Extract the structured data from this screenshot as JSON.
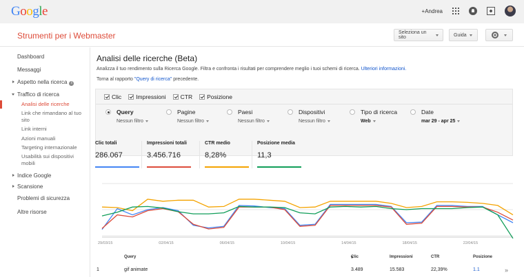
{
  "header": {
    "logo_letters": [
      {
        "ch": "G",
        "color": "#4285f4"
      },
      {
        "ch": "o",
        "color": "#ea4335"
      },
      {
        "ch": "o",
        "color": "#fbbc05"
      },
      {
        "ch": "g",
        "color": "#4285f4"
      },
      {
        "ch": "l",
        "color": "#34a853"
      },
      {
        "ch": "e",
        "color": "#ea4335"
      }
    ],
    "user_label": "+Andrea"
  },
  "product": {
    "name": "Strumenti per i Webmaster",
    "site_selector": "Seleziona un sito",
    "guide": "Guida"
  },
  "sidebar": {
    "items": [
      {
        "label": "Dashboard"
      },
      {
        "label": "Messaggi"
      },
      {
        "label": "Aspetto nella ricerca"
      },
      {
        "label": "Traffico di ricerca"
      },
      {
        "label": "Analisi delle ricerche"
      },
      {
        "label": "Link che rimandano al tuo sito"
      },
      {
        "label": "Link interni"
      },
      {
        "label": "Azioni manuali"
      },
      {
        "label": "Targeting internazionale"
      },
      {
        "label": "Usabilità sui dispositivi mobili"
      },
      {
        "label": "Indice Google"
      },
      {
        "label": "Scansione"
      },
      {
        "label": "Problemi di sicurezza"
      },
      {
        "label": "Altre risorse"
      }
    ]
  },
  "page": {
    "title": "Analisi delle ricerche (Beta)",
    "desc": "Analizza il tuo rendimento sulla Ricerca Google. Filtra e confronta i risultati per comprendere meglio i tuoi schemi di ricerca.",
    "desc_link": "Ulteriori informazioni.",
    "back_prefix": "Torna al rapporto",
    "back_link": "\"Query di ricerca\"",
    "back_suffix": "precedente."
  },
  "metrics": [
    {
      "label": "Clic"
    },
    {
      "label": "Impressioni"
    },
    {
      "label": "CTR"
    },
    {
      "label": "Posizione"
    }
  ],
  "dimensions": [
    {
      "label": "Query",
      "filter": "Nessun filtro",
      "selected": true
    },
    {
      "label": "Pagine",
      "filter": "Nessun filtro"
    },
    {
      "label": "Paesi",
      "filter": "Nessun filtro"
    },
    {
      "label": "Dispositivi",
      "filter": "Nessun filtro"
    },
    {
      "label": "Tipo di ricerca",
      "filter": "Web"
    },
    {
      "label": "Date",
      "filter": "mar 29 - apr 25"
    }
  ],
  "totals": [
    {
      "label": "Clic totali",
      "value": "286.067",
      "color": "#4285f4"
    },
    {
      "label": "Impressioni totali",
      "value": "3.456.716",
      "color": "#dd4b39"
    },
    {
      "label": "CTR medio",
      "value": "8,28%",
      "color": "#f4a300"
    },
    {
      "label": "Posizione media",
      "value": "11,3",
      "color": "#0f9d58"
    }
  ],
  "chart_data": {
    "type": "line",
    "x": [
      "29/03/15",
      "30/03/15",
      "31/03/15",
      "01/04/15",
      "02/04/15",
      "03/04/15",
      "04/04/15",
      "05/04/15",
      "06/04/15",
      "07/04/15",
      "08/04/15",
      "09/04/15",
      "10/04/15",
      "11/04/15",
      "12/04/15",
      "13/04/15",
      "14/04/15",
      "15/04/15",
      "16/04/15",
      "17/04/15",
      "18/04/15",
      "19/04/15",
      "20/04/15",
      "21/04/15",
      "22/04/15",
      "23/04/15",
      "24/04/15",
      "25/04/15"
    ],
    "tick_labels": [
      "29/03/15",
      "02/04/15",
      "06/04/15",
      "10/04/15",
      "14/04/15",
      "18/04/15",
      "22/04/15"
    ],
    "series": [
      {
        "color": "#4285f4",
        "values": [
          0.12,
          0.52,
          0.4,
          0.5,
          0.54,
          0.48,
          0.2,
          0.15,
          0.18,
          0.58,
          0.57,
          0.54,
          0.52,
          0.2,
          0.22,
          0.6,
          0.6,
          0.6,
          0.6,
          0.56,
          0.25,
          0.26,
          0.58,
          0.58,
          0.56,
          0.56,
          0.4,
          0.25
        ]
      },
      {
        "color": "#dd4b39",
        "values": [
          0.14,
          0.4,
          0.36,
          0.48,
          0.52,
          0.46,
          0.22,
          0.13,
          0.16,
          0.55,
          0.55,
          0.55,
          0.5,
          0.18,
          0.2,
          0.58,
          0.58,
          0.58,
          0.58,
          0.55,
          0.22,
          0.24,
          0.56,
          0.56,
          0.55,
          0.55,
          0.45,
          0.3
        ]
      },
      {
        "color": "#f4a300",
        "values": [
          0.55,
          0.54,
          0.48,
          0.7,
          0.66,
          0.68,
          0.68,
          0.55,
          0.56,
          0.7,
          0.7,
          0.68,
          0.66,
          0.54,
          0.55,
          0.66,
          0.66,
          0.66,
          0.66,
          0.62,
          0.54,
          0.56,
          0.65,
          0.65,
          0.64,
          0.62,
          0.58,
          0.4
        ]
      },
      {
        "color": "#0f9d58",
        "values": [
          0.38,
          0.45,
          0.55,
          0.56,
          0.53,
          0.46,
          0.42,
          0.42,
          0.44,
          0.56,
          0.55,
          0.55,
          0.54,
          0.44,
          0.42,
          0.55,
          0.56,
          0.55,
          0.56,
          0.52,
          0.5,
          0.52,
          0.52,
          0.52,
          0.54,
          0.55,
          0.4,
          -0.05
        ]
      }
    ]
  },
  "table": {
    "headers": {
      "query": "Query",
      "clicks": "Clic",
      "impressions": "Impressioni",
      "ctr": "CTR",
      "position": "Posizione"
    },
    "rows": [
      {
        "rank": "1",
        "query": "gif animate",
        "clicks": "3.489",
        "impressions": "15.583",
        "ctr": "22,39%",
        "position": "1.1",
        "chevron": "»"
      }
    ]
  }
}
